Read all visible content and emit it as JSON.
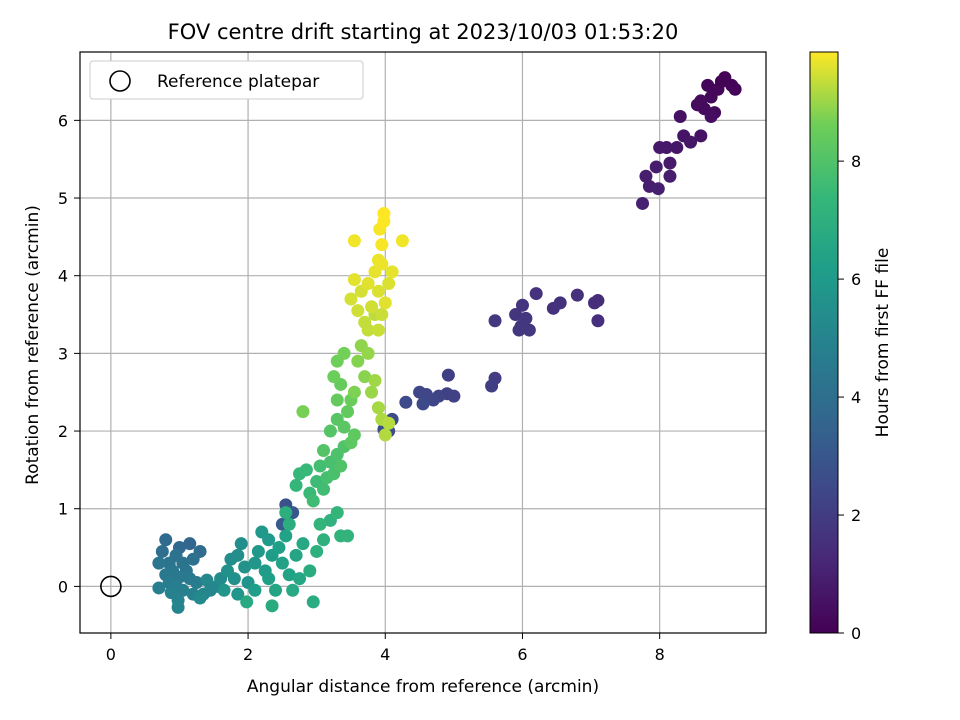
{
  "chart_data": {
    "type": "scatter",
    "title": "FOV centre drift starting at 2023/10/03 01:53:20",
    "xlabel": "Angular distance from reference (arcmin)",
    "ylabel": "Rotation from reference (arcmin)",
    "xlim": [
      -0.45,
      9.55
    ],
    "ylim": [
      -0.6,
      6.88
    ],
    "xticks": [
      0,
      2,
      4,
      6,
      8
    ],
    "yticks": [
      0,
      1,
      2,
      3,
      4,
      5,
      6
    ],
    "grid": true,
    "legend": {
      "placement": "top-left",
      "entries": [
        "Reference platepar"
      ]
    },
    "reference_point": {
      "x": 0,
      "y": 0,
      "label": "Reference platepar"
    },
    "colorbar": {
      "label": "Hours from first FF file",
      "colormap": "viridis",
      "range": [
        0,
        9.85
      ],
      "ticks": [
        0,
        2,
        4,
        6,
        8
      ]
    },
    "points": [
      [
        8.95,
        6.55,
        0.05
      ],
      [
        9.05,
        6.45,
        0.1
      ],
      [
        8.85,
        6.4,
        0.2
      ],
      [
        8.7,
        6.45,
        0.15
      ],
      [
        8.75,
        6.3,
        0.25
      ],
      [
        8.6,
        6.25,
        0.3
      ],
      [
        9.1,
        6.4,
        0.12
      ],
      [
        8.65,
        6.15,
        0.35
      ],
      [
        8.8,
        6.1,
        0.28
      ],
      [
        8.9,
        6.5,
        0.08
      ],
      [
        8.55,
        6.2,
        0.32
      ],
      [
        8.75,
        6.05,
        0.4
      ],
      [
        8.3,
        6.05,
        0.5
      ],
      [
        8.35,
        5.8,
        0.6
      ],
      [
        8.6,
        5.8,
        0.55
      ],
      [
        8.45,
        5.72,
        0.65
      ],
      [
        8.25,
        5.65,
        0.7
      ],
      [
        8.1,
        5.65,
        0.72
      ],
      [
        8.0,
        5.65,
        0.75
      ],
      [
        8.15,
        5.45,
        0.8
      ],
      [
        7.95,
        5.4,
        0.85
      ],
      [
        7.8,
        5.28,
        0.9
      ],
      [
        7.85,
        5.15,
        0.92
      ],
      [
        8.15,
        5.28,
        0.88
      ],
      [
        7.98,
        5.12,
        0.95
      ],
      [
        7.75,
        4.93,
        1.0
      ],
      [
        7.1,
        3.68,
        1.4
      ],
      [
        7.05,
        3.65,
        1.45
      ],
      [
        7.1,
        3.42,
        1.5
      ],
      [
        6.8,
        3.75,
        1.55
      ],
      [
        6.55,
        3.65,
        1.6
      ],
      [
        6.45,
        3.58,
        1.62
      ],
      [
        6.2,
        3.77,
        1.65
      ],
      [
        6.0,
        3.62,
        1.7
      ],
      [
        5.9,
        3.5,
        1.72
      ],
      [
        6.05,
        3.45,
        1.75
      ],
      [
        5.98,
        3.35,
        1.78
      ],
      [
        6.1,
        3.3,
        1.8
      ],
      [
        5.95,
        3.3,
        1.82
      ],
      [
        5.6,
        3.42,
        1.85
      ],
      [
        5.6,
        2.68,
        2.0
      ],
      [
        5.55,
        2.58,
        2.05
      ],
      [
        4.92,
        2.72,
        2.1
      ],
      [
        4.9,
        2.48,
        2.15
      ],
      [
        5.0,
        2.45,
        2.2
      ],
      [
        4.78,
        2.45,
        2.25
      ],
      [
        4.6,
        2.47,
        2.3
      ],
      [
        4.7,
        2.4,
        2.35
      ],
      [
        4.5,
        2.5,
        2.4
      ],
      [
        4.55,
        2.35,
        2.45
      ],
      [
        4.3,
        2.37,
        2.5
      ],
      [
        4.1,
        2.15,
        2.55
      ],
      [
        4.05,
        2.0,
        2.6
      ],
      [
        3.98,
        2.02,
        2.65
      ],
      [
        2.55,
        1.05,
        2.8
      ],
      [
        2.65,
        0.95,
        3.0
      ],
      [
        2.5,
        0.8,
        3.1
      ],
      [
        1.15,
        0.55,
        3.6
      ],
      [
        1.0,
        0.5,
        3.7
      ],
      [
        0.8,
        0.6,
        3.8
      ],
      [
        1.3,
        0.45,
        3.9
      ],
      [
        0.75,
        0.45,
        4.0
      ],
      [
        1.2,
        0.35,
        4.1
      ],
      [
        0.95,
        0.4,
        4.15
      ],
      [
        0.85,
        0.3,
        4.2
      ],
      [
        1.05,
        0.3,
        4.25
      ],
      [
        0.7,
        0.3,
        4.3
      ],
      [
        1.1,
        0.2,
        4.35
      ],
      [
        0.9,
        0.2,
        4.4
      ],
      [
        0.8,
        0.15,
        4.45
      ],
      [
        1.0,
        0.12,
        4.5
      ],
      [
        1.15,
        0.1,
        4.55
      ],
      [
        0.85,
        0.05,
        4.6
      ],
      [
        1.25,
        0.05,
        4.65
      ],
      [
        0.95,
        0.0,
        4.7
      ],
      [
        0.7,
        -0.02,
        4.75
      ],
      [
        1.05,
        -0.05,
        4.8
      ],
      [
        0.88,
        -0.08,
        4.85
      ],
      [
        1.2,
        -0.1,
        4.9
      ],
      [
        0.98,
        -0.18,
        4.95
      ],
      [
        0.98,
        -0.27,
        5.0
      ],
      [
        1.35,
        -0.1,
        5.05
      ],
      [
        1.45,
        -0.05,
        5.1
      ],
      [
        1.55,
        0.0,
        5.15
      ],
      [
        1.4,
        0.08,
        5.2
      ],
      [
        1.3,
        -0.15,
        5.25
      ],
      [
        1.6,
        0.1,
        5.3
      ],
      [
        1.75,
        0.35,
        5.4
      ],
      [
        1.85,
        0.4,
        5.45
      ],
      [
        1.9,
        0.55,
        5.5
      ],
      [
        1.7,
        0.2,
        5.55
      ],
      [
        1.8,
        0.1,
        5.6
      ],
      [
        1.95,
        0.25,
        5.65
      ],
      [
        2.0,
        0.05,
        5.7
      ],
      [
        1.65,
        -0.05,
        5.75
      ],
      [
        1.85,
        -0.1,
        5.8
      ],
      [
        2.1,
        0.3,
        5.85
      ],
      [
        2.15,
        0.45,
        5.9
      ],
      [
        2.2,
        0.7,
        5.95
      ],
      [
        2.3,
        0.6,
        6.0
      ],
      [
        2.25,
        0.2,
        6.05
      ],
      [
        2.35,
        0.4,
        6.1
      ],
      [
        2.1,
        -0.05,
        6.15
      ],
      [
        2.3,
        0.1,
        6.2
      ],
      [
        2.45,
        0.5,
        6.25
      ],
      [
        2.5,
        0.3,
        6.3
      ],
      [
        2.55,
        0.65,
        6.35
      ],
      [
        2.6,
        0.15,
        6.4
      ],
      [
        2.4,
        -0.05,
        6.45
      ],
      [
        2.7,
        0.4,
        6.5
      ],
      [
        2.75,
        0.1,
        6.55
      ],
      [
        2.8,
        0.55,
        6.6
      ],
      [
        2.65,
        -0.05,
        6.65
      ],
      [
        1.98,
        -0.2,
        6.7
      ],
      [
        2.35,
        -0.25,
        6.75
      ],
      [
        2.95,
        -0.2,
        6.8
      ],
      [
        2.9,
        0.2,
        6.85
      ],
      [
        2.6,
        0.8,
        6.9
      ],
      [
        2.55,
        0.95,
        6.95
      ],
      [
        3.0,
        0.45,
        7.0
      ],
      [
        3.1,
        0.6,
        7.05
      ],
      [
        3.2,
        0.85,
        7.1
      ],
      [
        3.35,
        0.65,
        7.15
      ],
      [
        3.45,
        0.65,
        7.2
      ],
      [
        3.05,
        0.8,
        7.25
      ],
      [
        3.3,
        0.95,
        7.3
      ],
      [
        2.7,
        1.3,
        7.35
      ],
      [
        2.75,
        1.45,
        7.4
      ],
      [
        2.85,
        1.5,
        7.45
      ],
      [
        2.9,
        1.2,
        7.5
      ],
      [
        3.0,
        1.35,
        7.55
      ],
      [
        2.95,
        1.1,
        7.6
      ],
      [
        3.1,
        1.25,
        7.65
      ],
      [
        3.05,
        1.55,
        7.7
      ],
      [
        3.15,
        1.4,
        7.75
      ],
      [
        3.2,
        1.6,
        7.8
      ],
      [
        3.25,
        1.45,
        7.85
      ],
      [
        3.3,
        1.7,
        7.9
      ],
      [
        3.35,
        1.55,
        7.95
      ],
      [
        3.4,
        1.8,
        8.0
      ],
      [
        3.1,
        1.75,
        8.05
      ],
      [
        3.2,
        2.0,
        8.1
      ],
      [
        3.3,
        2.15,
        8.15
      ],
      [
        3.4,
        2.05,
        8.2
      ],
      [
        3.5,
        1.85,
        8.25
      ],
      [
        3.55,
        1.95,
        8.3
      ],
      [
        3.45,
        2.25,
        8.35
      ],
      [
        3.3,
        2.4,
        8.4
      ],
      [
        3.35,
        2.6,
        8.45
      ],
      [
        3.5,
        2.4,
        8.5
      ],
      [
        3.25,
        2.7,
        8.55
      ],
      [
        3.3,
        2.9,
        8.6
      ],
      [
        3.4,
        3.0,
        8.65
      ],
      [
        2.8,
        2.25,
        8.7
      ],
      [
        3.55,
        2.5,
        8.75
      ],
      [
        3.6,
        2.9,
        8.8
      ],
      [
        3.7,
        2.7,
        8.85
      ],
      [
        3.65,
        3.1,
        8.9
      ],
      [
        3.75,
        3.0,
        8.95
      ],
      [
        3.8,
        2.5,
        9.0
      ],
      [
        3.85,
        2.65,
        9.05
      ],
      [
        3.9,
        2.3,
        9.1
      ],
      [
        3.95,
        2.15,
        9.15
      ],
      [
        4.0,
        1.95,
        9.2
      ],
      [
        4.05,
        2.1,
        9.25
      ],
      [
        3.85,
        3.5,
        9.3
      ],
      [
        3.7,
        3.4,
        9.35
      ],
      [
        3.75,
        3.3,
        9.35
      ],
      [
        3.9,
        3.3,
        9.4
      ],
      [
        3.95,
        3.5,
        9.4
      ],
      [
        3.8,
        3.6,
        9.45
      ],
      [
        3.6,
        3.55,
        9.45
      ],
      [
        3.5,
        3.7,
        9.5
      ],
      [
        3.65,
        3.8,
        9.5
      ],
      [
        3.9,
        3.8,
        9.55
      ],
      [
        4.05,
        3.9,
        9.55
      ],
      [
        4.0,
        3.65,
        9.6
      ],
      [
        3.75,
        3.9,
        9.6
      ],
      [
        3.55,
        3.95,
        9.62
      ],
      [
        3.85,
        4.05,
        9.65
      ],
      [
        4.1,
        4.05,
        9.65
      ],
      [
        3.95,
        4.15,
        9.7
      ],
      [
        3.9,
        4.2,
        9.7
      ],
      [
        3.55,
        4.45,
        9.75
      ],
      [
        4.25,
        4.45,
        9.75
      ],
      [
        3.95,
        4.4,
        9.8
      ],
      [
        3.92,
        4.6,
        9.8
      ],
      [
        3.98,
        4.7,
        9.85
      ],
      [
        3.98,
        4.8,
        9.85
      ]
    ]
  }
}
